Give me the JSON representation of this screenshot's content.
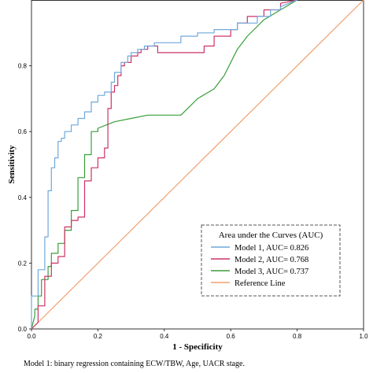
{
  "chart_data": {
    "type": "line",
    "title": "",
    "xlabel": "1 - Specificity",
    "ylabel": "Sensitivity",
    "xlim": [
      0,
      1
    ],
    "ylim": [
      0,
      1
    ],
    "x_ticks": [
      "0.0",
      "0.2",
      "0.4",
      "0.6",
      "0.8",
      "1.0"
    ],
    "y_ticks": [
      "0.0",
      "0.2",
      "0.4",
      "0.6",
      "0.8"
    ],
    "grid": false,
    "legend_title": "Area under the Curves (AUC)",
    "legend_placement": "bottom-right",
    "series": [
      {
        "name": "Model 1, AUC= 0.826",
        "color": "#6fa8dc",
        "x": [
          0,
          0,
          0.02,
          0.02,
          0.04,
          0.04,
          0.05,
          0.05,
          0.06,
          0.06,
          0.07,
          0.07,
          0.08,
          0.08,
          0.09,
          0.09,
          0.1,
          0.1,
          0.12,
          0.12,
          0.14,
          0.14,
          0.16,
          0.16,
          0.18,
          0.18,
          0.2,
          0.2,
          0.22,
          0.22,
          0.24,
          0.24,
          0.25,
          0.25,
          0.27,
          0.27,
          0.29,
          0.29,
          0.3,
          0.3,
          0.32,
          0.32,
          0.34,
          0.34,
          0.37,
          0.37,
          0.38,
          0.38,
          0.45,
          0.45,
          0.5,
          0.5,
          0.55,
          0.55,
          0.62,
          0.62,
          0.68,
          0.68,
          0.72,
          0.72,
          0.75,
          0.75,
          0.8
        ],
        "y": [
          0,
          0.1,
          0.1,
          0.18,
          0.18,
          0.28,
          0.28,
          0.42,
          0.42,
          0.49,
          0.49,
          0.52,
          0.52,
          0.57,
          0.57,
          0.58,
          0.58,
          0.6,
          0.6,
          0.62,
          0.62,
          0.64,
          0.64,
          0.66,
          0.66,
          0.69,
          0.69,
          0.71,
          0.71,
          0.72,
          0.72,
          0.75,
          0.75,
          0.78,
          0.78,
          0.81,
          0.81,
          0.83,
          0.83,
          0.84,
          0.84,
          0.85,
          0.85,
          0.86,
          0.86,
          0.87,
          0.87,
          0.87,
          0.87,
          0.89,
          0.89,
          0.9,
          0.9,
          0.91,
          0.91,
          0.93,
          0.93,
          0.95,
          0.95,
          0.97,
          0.97,
          0.98,
          1.0
        ]
      },
      {
        "name": "Model 2, AUC= 0.768",
        "color": "#cc3366",
        "x": [
          0,
          0.02,
          0.02,
          0.04,
          0.04,
          0.06,
          0.06,
          0.08,
          0.08,
          0.1,
          0.1,
          0.12,
          0.12,
          0.14,
          0.14,
          0.16,
          0.16,
          0.18,
          0.18,
          0.2,
          0.2,
          0.22,
          0.22,
          0.23,
          0.23,
          0.24,
          0.24,
          0.25,
          0.25,
          0.26,
          0.26,
          0.27,
          0.27,
          0.28,
          0.28,
          0.3,
          0.3,
          0.32,
          0.32,
          0.33,
          0.33,
          0.35,
          0.35,
          0.38,
          0.38,
          0.4,
          0.4,
          0.52,
          0.52,
          0.55,
          0.55,
          0.6,
          0.6,
          0.62,
          0.62,
          0.65,
          0.65,
          0.7,
          0.7,
          0.75,
          0.75,
          0.8
        ],
        "y": [
          0,
          0.02,
          0.07,
          0.07,
          0.16,
          0.16,
          0.2,
          0.2,
          0.22,
          0.22,
          0.31,
          0.31,
          0.33,
          0.33,
          0.34,
          0.34,
          0.45,
          0.45,
          0.49,
          0.49,
          0.52,
          0.52,
          0.55,
          0.55,
          0.67,
          0.67,
          0.72,
          0.72,
          0.74,
          0.74,
          0.77,
          0.77,
          0.8,
          0.8,
          0.81,
          0.81,
          0.83,
          0.83,
          0.84,
          0.84,
          0.85,
          0.85,
          0.86,
          0.86,
          0.84,
          0.84,
          0.84,
          0.84,
          0.86,
          0.86,
          0.89,
          0.89,
          0.91,
          0.91,
          0.93,
          0.93,
          0.95,
          0.95,
          0.97,
          0.97,
          0.99,
          1.0
        ]
      },
      {
        "name": "Model 3, AUC= 0.737",
        "color": "#3a9e3a",
        "x": [
          0,
          0.01,
          0.01,
          0.02,
          0.02,
          0.03,
          0.03,
          0.05,
          0.05,
          0.06,
          0.06,
          0.08,
          0.08,
          0.1,
          0.1,
          0.12,
          0.12,
          0.14,
          0.14,
          0.16,
          0.16,
          0.18,
          0.18,
          0.2,
          0.2,
          0.25,
          0.3,
          0.35,
          0.4,
          0.45,
          0.48,
          0.5,
          0.55,
          0.58,
          0.62,
          0.65,
          0.7,
          0.75,
          0.8
        ],
        "y": [
          0,
          0.04,
          0.06,
          0.06,
          0.1,
          0.1,
          0.15,
          0.15,
          0.19,
          0.19,
          0.23,
          0.23,
          0.26,
          0.26,
          0.3,
          0.3,
          0.36,
          0.36,
          0.46,
          0.46,
          0.53,
          0.53,
          0.6,
          0.6,
          0.61,
          0.63,
          0.64,
          0.65,
          0.65,
          0.65,
          0.68,
          0.7,
          0.73,
          0.77,
          0.85,
          0.89,
          0.94,
          0.97,
          1.0
        ]
      },
      {
        "name": "Reference Line",
        "color": "#f0a070",
        "x": [
          0,
          1
        ],
        "y": [
          0,
          1
        ]
      }
    ]
  },
  "footnote": "Model 1: binary regression containing ECW/TBW, Age, UACR stage."
}
